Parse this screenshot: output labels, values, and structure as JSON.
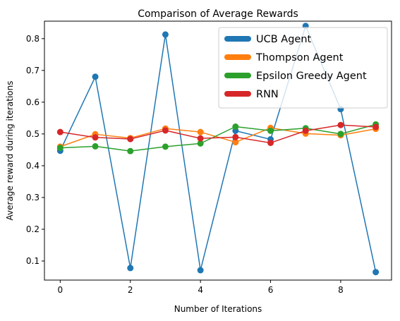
{
  "chart_data": {
    "type": "line",
    "title": "Comparison of Average Rewards",
    "xlabel": "Number of Iterations",
    "ylabel": "Average reward during iterations",
    "x": [
      0,
      1,
      2,
      3,
      4,
      5,
      6,
      7,
      8,
      9
    ],
    "xlim": [
      -0.45,
      9.45
    ],
    "ylim": [
      0.04,
      0.855
    ],
    "xticks": [
      0,
      2,
      4,
      6,
      8
    ],
    "yticks": [
      0.1,
      0.2,
      0.3,
      0.4,
      0.5,
      0.6,
      0.7,
      0.8
    ],
    "grid": false,
    "legend_position": "top-right",
    "series": [
      {
        "name": "UCB Agent",
        "color": "#1f77b4",
        "values": [
          0.447,
          0.68,
          0.078,
          0.813,
          0.071,
          0.51,
          0.483,
          0.84,
          0.578,
          0.065
        ]
      },
      {
        "name": "Thompson Agent",
        "color": "#ff7f0e",
        "values": [
          0.46,
          0.499,
          0.487,
          0.517,
          0.506,
          0.474,
          0.519,
          0.501,
          0.496,
          0.516
        ]
      },
      {
        "name": "Epsilon Greedy Agent",
        "color": "#2ca02c",
        "values": [
          0.456,
          0.461,
          0.446,
          0.46,
          0.47,
          0.523,
          0.51,
          0.518,
          0.5,
          0.53
        ]
      },
      {
        "name": "RNN",
        "color": "#d62728",
        "values": [
          0.506,
          0.489,
          0.484,
          0.511,
          0.486,
          0.49,
          0.472,
          0.51,
          0.528,
          0.522
        ]
      }
    ]
  }
}
